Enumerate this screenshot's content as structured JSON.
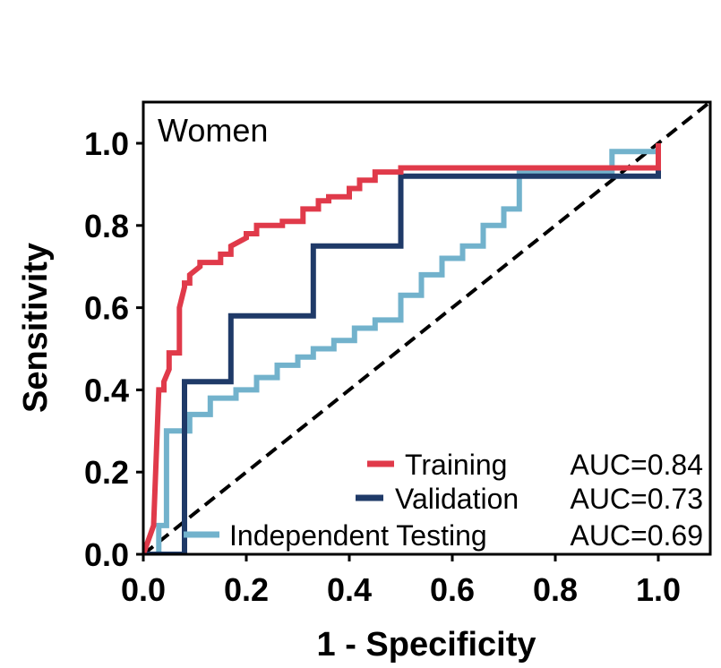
{
  "chart_data": {
    "type": "line",
    "title": "Women",
    "xlabel": "1 - Specificity",
    "ylabel": "Sensitivity",
    "xlim": [
      0.0,
      1.1
    ],
    "ylim": [
      0.0,
      1.1
    ],
    "xticks": [
      "0.0",
      "0.2",
      "0.4",
      "0.6",
      "0.8",
      "1.0"
    ],
    "yticks": [
      "0.0",
      "0.2",
      "0.4",
      "0.6",
      "0.8",
      "1.0"
    ],
    "legend_position": "bottom-right",
    "series": [
      {
        "name": "Training",
        "auc": "AUC=0.84",
        "color": "#e03a4a",
        "x": [
          0.0,
          0.02,
          0.02,
          0.03,
          0.03,
          0.04,
          0.04,
          0.05,
          0.05,
          0.07,
          0.07,
          0.08,
          0.08,
          0.09,
          0.09,
          0.11,
          0.11,
          0.15,
          0.15,
          0.17,
          0.17,
          0.2,
          0.2,
          0.22,
          0.22,
          0.27,
          0.27,
          0.31,
          0.31,
          0.34,
          0.34,
          0.36,
          0.36,
          0.4,
          0.4,
          0.42,
          0.42,
          0.45,
          0.45,
          0.5,
          0.5,
          1.0,
          1.0
        ],
        "y": [
          0.0,
          0.07,
          0.07,
          0.4,
          0.4,
          0.4,
          0.42,
          0.45,
          0.49,
          0.49,
          0.6,
          0.65,
          0.66,
          0.66,
          0.68,
          0.7,
          0.71,
          0.71,
          0.73,
          0.73,
          0.75,
          0.77,
          0.78,
          0.78,
          0.8,
          0.8,
          0.81,
          0.81,
          0.84,
          0.84,
          0.86,
          0.86,
          0.87,
          0.87,
          0.89,
          0.89,
          0.91,
          0.91,
          0.93,
          0.93,
          0.94,
          0.94,
          1.0
        ]
      },
      {
        "name": "Validation",
        "auc": "AUC=0.73",
        "color": "#1f3a68",
        "x": [
          0.0,
          0.08,
          0.08,
          0.17,
          0.17,
          0.33,
          0.33,
          0.5,
          0.5,
          0.5,
          1.0,
          1.0
        ],
        "y": [
          0.0,
          0.0,
          0.42,
          0.42,
          0.58,
          0.58,
          0.75,
          0.75,
          0.92,
          0.92,
          0.92,
          0.94
        ]
      },
      {
        "name": "Independent Testing",
        "auc": "AUC=0.69",
        "color": "#72b2cc",
        "x": [
          0.0,
          0.03,
          0.03,
          0.045,
          0.045,
          0.09,
          0.09,
          0.13,
          0.13,
          0.18,
          0.18,
          0.22,
          0.22,
          0.26,
          0.26,
          0.3,
          0.3,
          0.33,
          0.33,
          0.37,
          0.37,
          0.41,
          0.41,
          0.45,
          0.45,
          0.5,
          0.5,
          0.54,
          0.54,
          0.58,
          0.58,
          0.62,
          0.62,
          0.66,
          0.66,
          0.7,
          0.7,
          0.73,
          0.73,
          0.91,
          0.91,
          1.0
        ],
        "y": [
          0.0,
          0.0,
          0.07,
          0.07,
          0.3,
          0.3,
          0.34,
          0.34,
          0.38,
          0.38,
          0.4,
          0.4,
          0.43,
          0.43,
          0.46,
          0.46,
          0.48,
          0.48,
          0.5,
          0.5,
          0.52,
          0.52,
          0.55,
          0.55,
          0.57,
          0.57,
          0.63,
          0.63,
          0.68,
          0.68,
          0.72,
          0.72,
          0.75,
          0.75,
          0.8,
          0.8,
          0.84,
          0.84,
          0.93,
          0.93,
          0.98,
          0.98
        ]
      },
      {
        "name": "reference",
        "color": "#000000",
        "dashed": true,
        "x": [
          0.0,
          1.1
        ],
        "y": [
          0.0,
          1.1
        ]
      }
    ]
  }
}
